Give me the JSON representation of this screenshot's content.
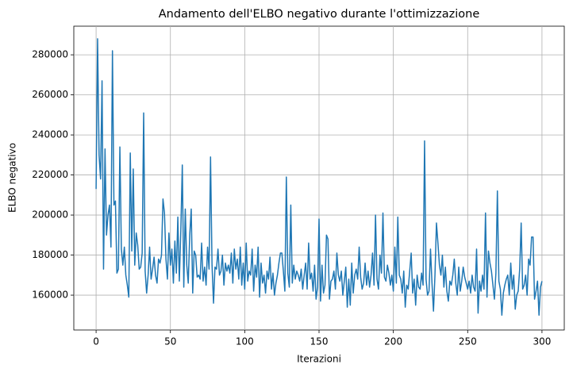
{
  "chart_data": {
    "type": "line",
    "title": "Andamento dell'ELBO negativo durante l'ottimizzazione",
    "xlabel": "Iterazioni",
    "ylabel": "ELBO negativo",
    "xlim": [
      -15,
      315
    ],
    "ylim": [
      142600,
      294300
    ],
    "xticks": [
      0,
      50,
      100,
      150,
      200,
      250,
      300
    ],
    "yticks": [
      160000,
      180000,
      200000,
      220000,
      240000,
      260000,
      280000
    ],
    "grid": true,
    "x": [
      0,
      1,
      2,
      3,
      4,
      5,
      6,
      7,
      8,
      9,
      10,
      11,
      12,
      13,
      14,
      15,
      16,
      17,
      18,
      19,
      20,
      21,
      22,
      23,
      24,
      25,
      26,
      27,
      28,
      29,
      30,
      31,
      32,
      33,
      34,
      35,
      36,
      37,
      38,
      39,
      40,
      41,
      42,
      43,
      44,
      45,
      46,
      47,
      48,
      49,
      50,
      51,
      52,
      53,
      54,
      55,
      56,
      57,
      58,
      59,
      60,
      61,
      62,
      63,
      64,
      65,
      66,
      67,
      68,
      69,
      70,
      71,
      72,
      73,
      74,
      75,
      76,
      77,
      78,
      79,
      80,
      81,
      82,
      83,
      84,
      85,
      86,
      87,
      88,
      89,
      90,
      91,
      92,
      93,
      94,
      95,
      96,
      97,
      98,
      99,
      100,
      101,
      102,
      103,
      104,
      105,
      106,
      107,
      108,
      109,
      110,
      111,
      112,
      113,
      114,
      115,
      116,
      117,
      118,
      119,
      120,
      121,
      122,
      123,
      124,
      125,
      126,
      127,
      128,
      129,
      130,
      131,
      132,
      133,
      134,
      135,
      136,
      137,
      138,
      139,
      140,
      141,
      142,
      143,
      144,
      145,
      146,
      147,
      148,
      149,
      150,
      151,
      152,
      153,
      154,
      155,
      156,
      157,
      158,
      159,
      160,
      161,
      162,
      163,
      164,
      165,
      166,
      167,
      168,
      169,
      170,
      171,
      172,
      173,
      174,
      175,
      176,
      177,
      178,
      179,
      180,
      181,
      182,
      183,
      184,
      185,
      186,
      187,
      188,
      189,
      190,
      191,
      192,
      193,
      194,
      195,
      196,
      197,
      198,
      199,
      200,
      201,
      202,
      203,
      204,
      205,
      206,
      207,
      208,
      209,
      210,
      211,
      212,
      213,
      214,
      215,
      216,
      217,
      218,
      219,
      220,
      221,
      222,
      223,
      224,
      225,
      226,
      227,
      228,
      229,
      230,
      231,
      232,
      233,
      234,
      235,
      236,
      237,
      238,
      239,
      240,
      241,
      242,
      243,
      244,
      245,
      246,
      247,
      248,
      249,
      250,
      251,
      252,
      253,
      254,
      255,
      256,
      257,
      258,
      259,
      260,
      261,
      262,
      263,
      264,
      265,
      266,
      267,
      268,
      269,
      270,
      271,
      272,
      273,
      274,
      275,
      276,
      277,
      278,
      279,
      280,
      281,
      282,
      283,
      284,
      285,
      286,
      287,
      288,
      289,
      290,
      291,
      292,
      293,
      294,
      295,
      296,
      297,
      298,
      299,
      300
    ],
    "series": [
      {
        "color": "#1f77b4",
        "values": [
          213000,
          288000,
          230000,
          218000,
          267000,
          173000,
          233000,
          190000,
          200000,
          205000,
          184000,
          282000,
          205000,
          207000,
          171000,
          173000,
          234000,
          183000,
          175000,
          184000,
          170000,
          165000,
          159000,
          231000,
          182000,
          223000,
          175000,
          191000,
          185000,
          173000,
          174000,
          181000,
          251000,
          172000,
          161000,
          170000,
          184000,
          168000,
          173000,
          179000,
          170000,
          166000,
          178000,
          176000,
          180000,
          208000,
          201000,
          178000,
          168000,
          191000,
          175000,
          183000,
          166000,
          187000,
          171000,
          199000,
          167000,
          192000,
          225000,
          164000,
          203000,
          175000,
          166000,
          190000,
          203000,
          161000,
          182000,
          180000,
          169000,
          170000,
          168000,
          186000,
          167000,
          174000,
          165000,
          184000,
          173000,
          229000,
          175000,
          156000,
          174000,
          173000,
          183000,
          170000,
          172000,
          180000,
          165000,
          176000,
          172000,
          175000,
          171000,
          181000,
          166000,
          183000,
          173000,
          178000,
          168000,
          184000,
          165000,
          176000,
          163000,
          186000,
          167000,
          172000,
          170000,
          183000,
          162000,
          175000,
          169000,
          184000,
          159000,
          176000,
          166000,
          170000,
          161000,
          172000,
          168000,
          179000,
          163000,
          171000,
          160000,
          166000,
          170000,
          176000,
          181000,
          181000,
          172000,
          162000,
          219000,
          171000,
          164000,
          205000,
          166000,
          175000,
          168000,
          172000,
          170000,
          167000,
          173000,
          163000,
          170000,
          176000,
          163000,
          186000,
          168000,
          171000,
          162000,
          175000,
          158000,
          164000,
          198000,
          157000,
          175000,
          161000,
          165000,
          190000,
          188000,
          158000,
          167000,
          168000,
          172000,
          163000,
          181000,
          170000,
          167000,
          172000,
          160000,
          167000,
          174000,
          154000,
          168000,
          155000,
          176000,
          161000,
          170000,
          173000,
          168000,
          184000,
          169000,
          163000,
          166000,
          176000,
          165000,
          172000,
          164000,
          170000,
          181000,
          165000,
          200000,
          168000,
          163000,
          180000,
          171000,
          201000,
          169000,
          167000,
          175000,
          171000,
          165000,
          170000,
          162000,
          184000,
          166000,
          199000,
          170000,
          168000,
          161000,
          172000,
          154000,
          165000,
          163000,
          172000,
          181000,
          161000,
          168000,
          155000,
          170000,
          164000,
          163000,
          171000,
          165000,
          237000,
          168000,
          160000,
          162000,
          183000,
          166000,
          152000,
          170000,
          196000,
          186000,
          175000,
          170000,
          180000,
          164000,
          174000,
          162000,
          157000,
          167000,
          165000,
          170000,
          178000,
          166000,
          160000,
          174000,
          162000,
          167000,
          174000,
          169000,
          166000,
          163000,
          167000,
          161000,
          170000,
          164000,
          162000,
          183000,
          151000,
          167000,
          162000,
          170000,
          163000,
          201000,
          159000,
          182000,
          176000,
          172000,
          165000,
          158000,
          171000,
          212000,
          167000,
          163000,
          150000,
          161000,
          165000,
          168000,
          170000,
          160000,
          176000,
          163000,
          170000,
          153000,
          160000,
          162000,
          173000,
          196000,
          163000,
          165000,
          170000,
          160000,
          178000,
          175000,
          189000,
          189000,
          158000,
          162000,
          167000,
          150000,
          164000,
          167000
        ]
      }
    ]
  }
}
